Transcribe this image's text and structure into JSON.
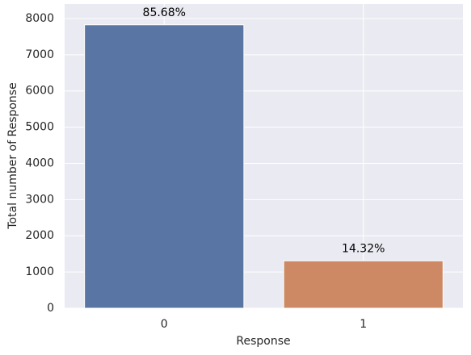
{
  "chart_data": {
    "type": "bar",
    "categories": [
      "0",
      "1"
    ],
    "values": [
      7826,
      1308
    ],
    "annotations": [
      "85.68%",
      "14.32%"
    ],
    "colors": [
      "#5975a4",
      "#cc8963"
    ],
    "xlabel": "Response",
    "ylabel": "Total number of Response",
    "ylim": [
      0,
      8400
    ],
    "yticks": [
      0,
      1000,
      2000,
      3000,
      4000,
      5000,
      6000,
      7000,
      8000
    ],
    "grid": true
  }
}
